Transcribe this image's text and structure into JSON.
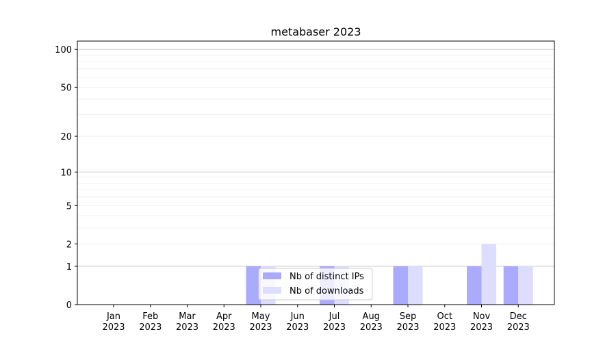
{
  "chart_data": {
    "type": "bar",
    "title": "metabaser 2023",
    "xlabel": "",
    "ylabel": "",
    "yscale": "log(1+y)",
    "ylim": [
      0,
      116
    ],
    "grid": "horizontal, major and minor",
    "legend_placement": "lower-center",
    "categories": [
      [
        "Jan",
        "2023"
      ],
      [
        "Feb",
        "2023"
      ],
      [
        "Mar",
        "2023"
      ],
      [
        "Apr",
        "2023"
      ],
      [
        "May",
        "2023"
      ],
      [
        "Jun",
        "2023"
      ],
      [
        "Jul",
        "2023"
      ],
      [
        "Aug",
        "2023"
      ],
      [
        "Sep",
        "2023"
      ],
      [
        "Oct",
        "2023"
      ],
      [
        "Nov",
        "2023"
      ],
      [
        "Dec",
        "2023"
      ]
    ],
    "yticks": [
      0,
      1,
      2,
      5,
      10,
      20,
      50,
      100
    ],
    "series": [
      {
        "name": "Nb of distinct IPs",
        "color": "#aaaaff",
        "values": [
          0,
          0,
          0,
          0,
          1,
          0,
          1,
          0,
          1,
          0,
          1,
          1
        ]
      },
      {
        "name": "Nb of downloads",
        "color": "#ddddff",
        "values": [
          0,
          0,
          0,
          0,
          1,
          0,
          1,
          0,
          1,
          0,
          2,
          1
        ]
      }
    ]
  }
}
